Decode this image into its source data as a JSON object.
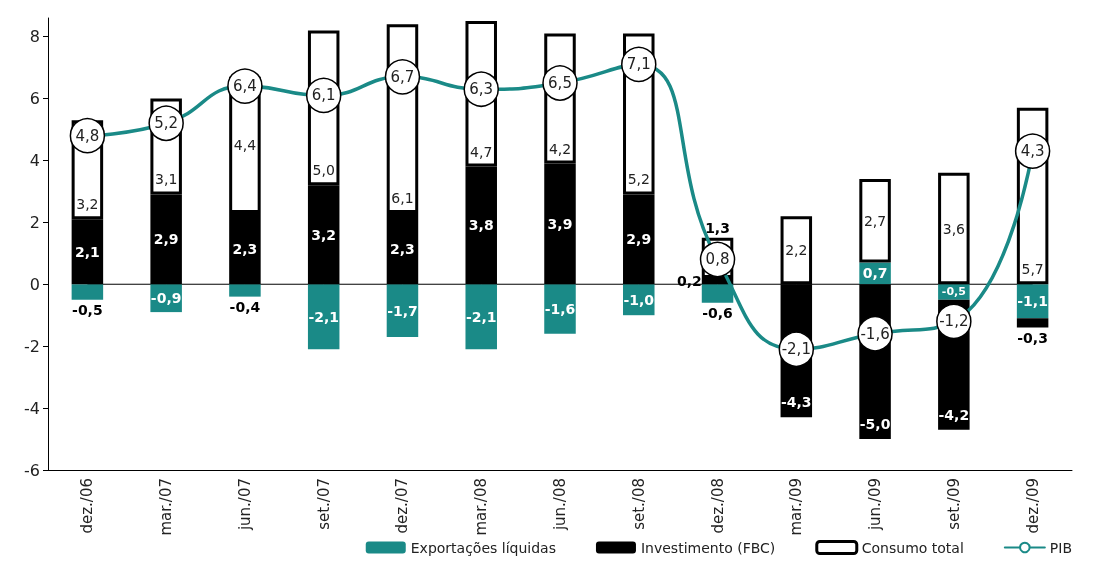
{
  "chart_data": {
    "type": "bar",
    "stacked": true,
    "categories": [
      "dez./06",
      "mar./07",
      "jun./07",
      "set./07",
      "dez./07",
      "mar./08",
      "jun./08",
      "set./08",
      "dez./08",
      "mar./09",
      "jun./09",
      "set./09",
      "dez./09"
    ],
    "series": [
      {
        "name": "Exportações líquidas",
        "color": "#1a8a87",
        "values": [
          -0.5,
          -0.9,
          -0.4,
          -2.1,
          -1.7,
          -2.1,
          -1.6,
          -1.0,
          -0.6,
          null,
          0.7,
          -0.5,
          -1.1
        ],
        "value_labels": [
          "-0,5",
          "-0,9",
          "-0,4",
          "-2,1",
          "-1,7",
          "-2,1",
          "-1,6",
          "-1,0",
          "-0,6",
          null,
          "0,7",
          "-0,5",
          "-1,1"
        ]
      },
      {
        "name": "Investimento (FBC)",
        "color": "#000000",
        "values": [
          2.1,
          2.9,
          2.3,
          3.2,
          2.3,
          3.8,
          3.9,
          2.9,
          0.2,
          -4.3,
          -5.0,
          -4.2,
          -0.3
        ],
        "value_labels": [
          "2,1",
          "2,9",
          "2,3",
          "3,2",
          "2,3",
          "3,8",
          "3,9",
          "2,9",
          "0,2",
          "-4,3",
          "-5,0",
          "-4,2",
          "-0,3"
        ]
      },
      {
        "name": "Consumo total",
        "color": "#ffffff",
        "values": [
          3.2,
          3.1,
          4.4,
          5.0,
          6.1,
          4.7,
          4.2,
          5.2,
          1.3,
          2.2,
          2.7,
          3.6,
          5.7
        ],
        "value_labels": [
          "3,2",
          "3,1",
          "4,4",
          "5,0",
          "6,1",
          "4,7",
          "4,2",
          "5,2",
          "1,3",
          "2,2",
          "2,7",
          "3,6",
          "5,7"
        ]
      },
      {
        "name": "PIB",
        "type": "line",
        "color": "#1a8a87",
        "values": [
          4.8,
          5.2,
          6.4,
          6.1,
          6.7,
          6.3,
          6.5,
          7.1,
          0.8,
          -2.1,
          -1.6,
          -1.2,
          4.3
        ],
        "value_labels": [
          "4,8",
          "5,2",
          "6,4",
          "6,1",
          "6,7",
          "6,3",
          "6,5",
          "7,1",
          "0,8",
          "-2,1",
          "-1,6",
          "-1,2",
          "4,3"
        ]
      }
    ],
    "ylim": [
      -6,
      8.6
    ],
    "yticks": [
      -6,
      -4,
      -2,
      0,
      2,
      4,
      6,
      8
    ],
    "grid": false,
    "legend": "bottom",
    "marker": "circle",
    "line_style": "solid"
  }
}
